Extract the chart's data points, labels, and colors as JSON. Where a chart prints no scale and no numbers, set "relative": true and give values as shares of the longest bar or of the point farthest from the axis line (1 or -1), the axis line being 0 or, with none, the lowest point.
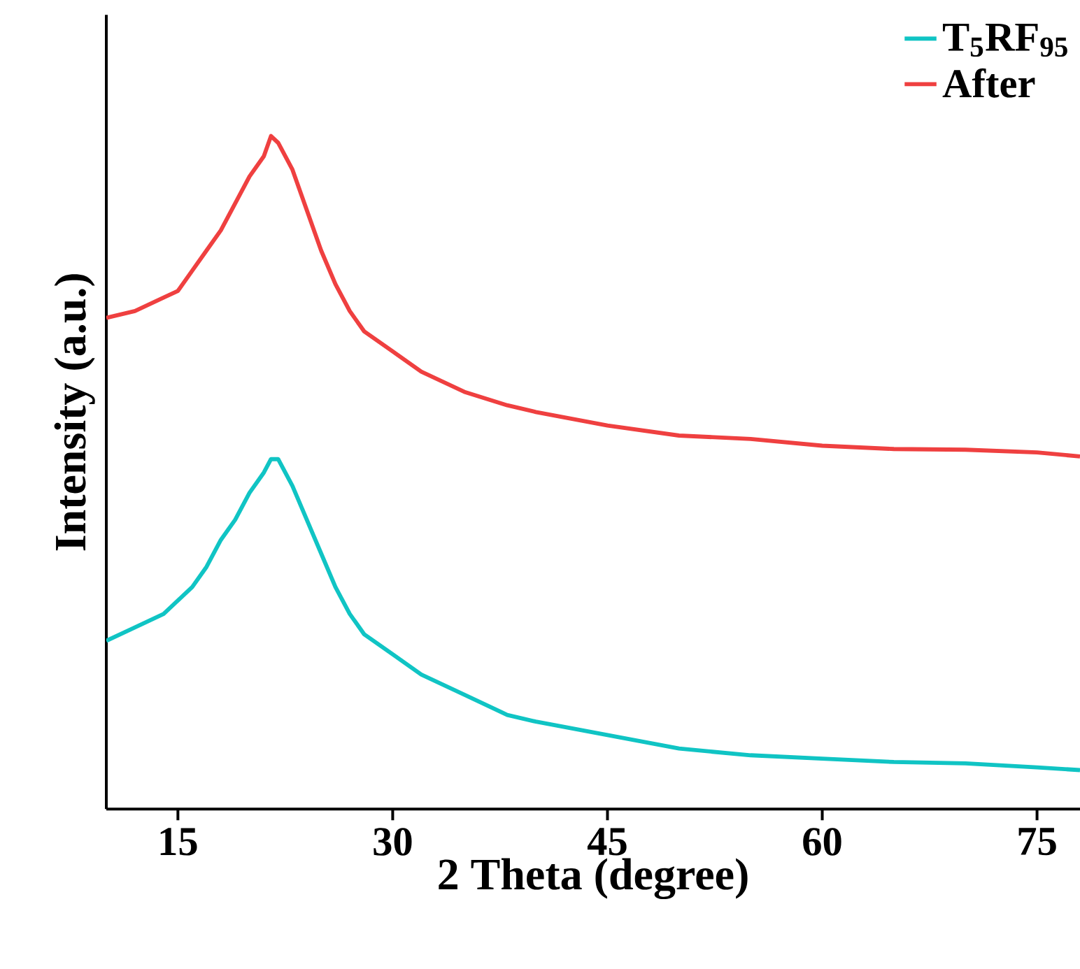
{
  "chart_data": {
    "type": "line",
    "xlabel": "2 Theta (degree)",
    "ylabel": "Intensity (a.u.)",
    "relative": true,
    "xlim": [
      10,
      78
    ],
    "xticks": [
      15,
      30,
      45,
      60,
      75
    ],
    "tick_labels": "x",
    "legend": "top right",
    "marker": "none",
    "line_style": "solid",
    "grid": false,
    "series": [
      {
        "name": "T$_{5}$RF$_{95}$",
        "color": "#10c4c4",
        "x": [
          10,
          12,
          14,
          15,
          16,
          17,
          18,
          19,
          20,
          21,
          21.5,
          22,
          22.5,
          23,
          24,
          25,
          26,
          27,
          28,
          30,
          32,
          35,
          38,
          40,
          45,
          50,
          55,
          60,
          65,
          70,
          75,
          78
        ],
        "values": [
          0.25,
          0.27,
          0.29,
          0.31,
          0.33,
          0.36,
          0.4,
          0.43,
          0.47,
          0.5,
          0.52,
          0.52,
          0.5,
          0.48,
          0.43,
          0.38,
          0.33,
          0.29,
          0.26,
          0.23,
          0.2,
          0.17,
          0.14,
          0.13,
          0.11,
          0.09,
          0.08,
          0.075,
          0.07,
          0.068,
          0.062,
          0.058
        ]
      },
      {
        "name": "After",
        "color": "#ef4040",
        "x": [
          10,
          12,
          14,
          15,
          16,
          17,
          18,
          19,
          20,
          21,
          21.5,
          22,
          22.5,
          23,
          24,
          25,
          26,
          27,
          28,
          30,
          32,
          35,
          38,
          40,
          45,
          50,
          55,
          60,
          65,
          70,
          75,
          78
        ],
        "values": [
          0.73,
          0.74,
          0.76,
          0.77,
          0.8,
          0.83,
          0.86,
          0.9,
          0.94,
          0.97,
          1,
          0.99,
          0.97,
          0.95,
          0.89,
          0.83,
          0.78,
          0.74,
          0.71,
          0.68,
          0.65,
          0.62,
          0.6,
          0.59,
          0.57,
          0.555,
          0.55,
          0.54,
          0.535,
          0.534,
          0.53,
          0.524
        ]
      }
    ]
  }
}
